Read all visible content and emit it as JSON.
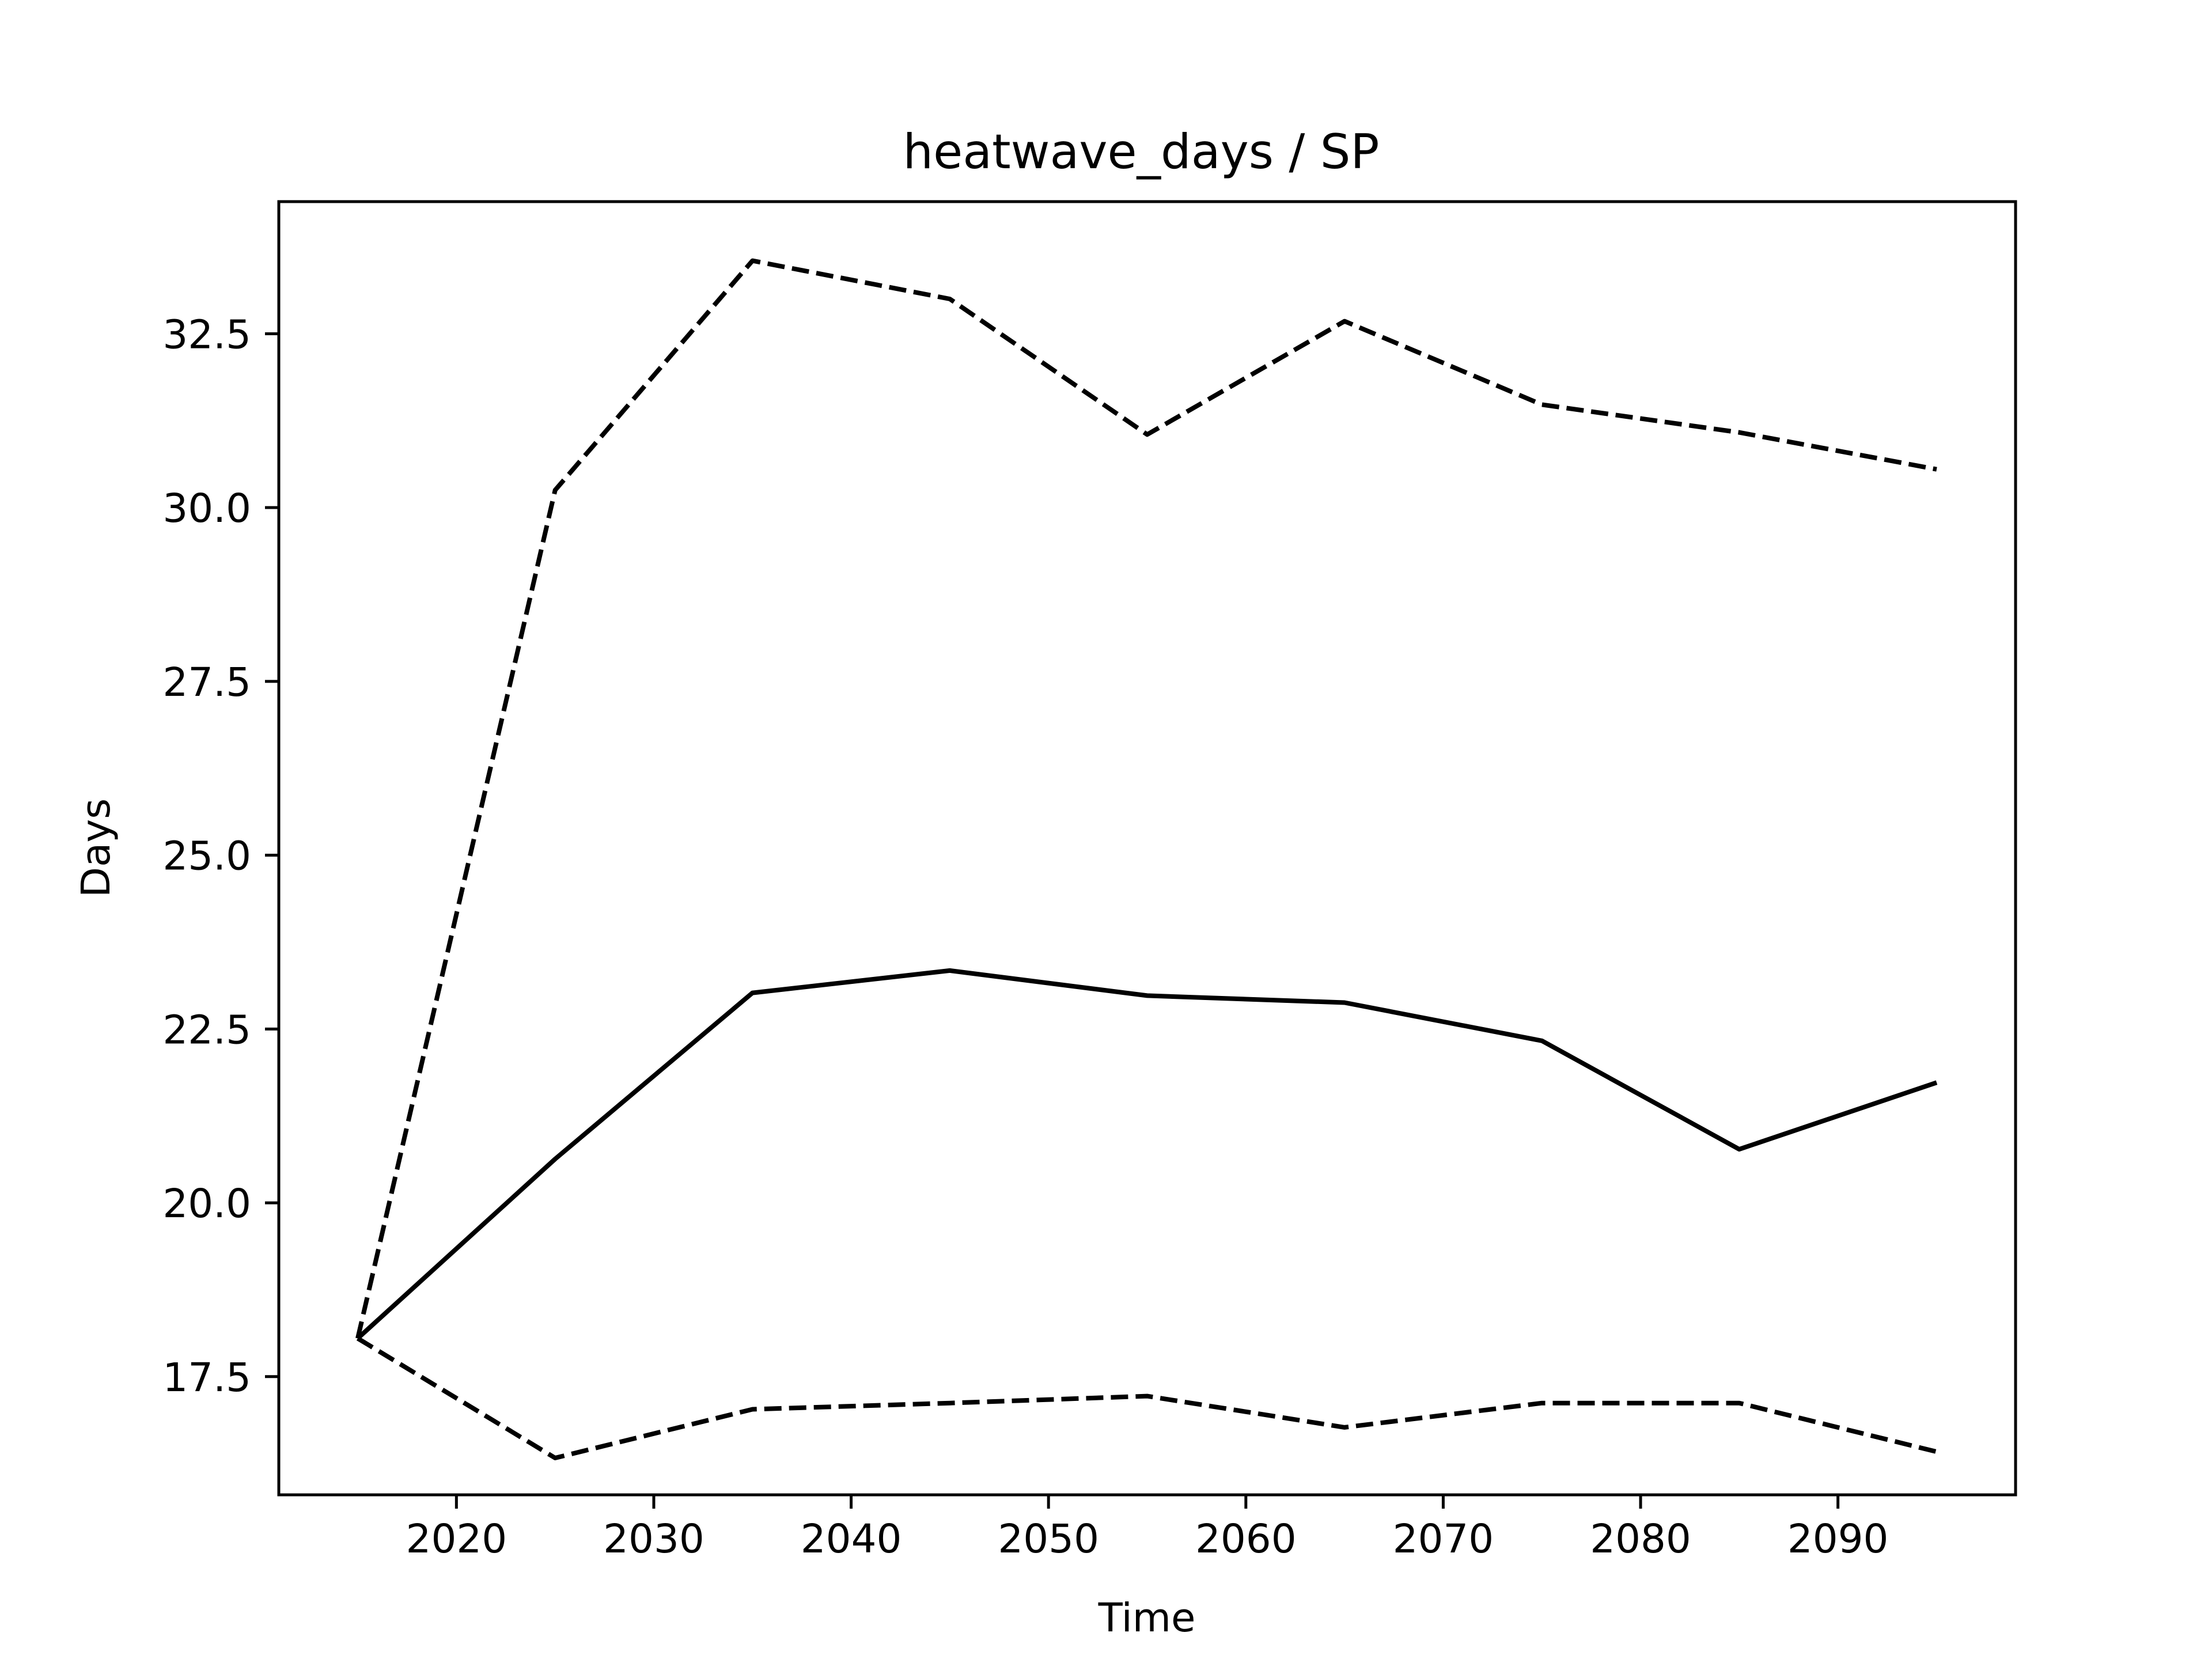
{
  "chart_data": {
    "type": "line",
    "title": "heatwave_days / SP",
    "xlabel": "Time",
    "ylabel": "Days",
    "xlim": [
      2011,
      2099
    ],
    "ylim": [
      15.8,
      34.4
    ],
    "xticks": [
      2020,
      2030,
      2040,
      2050,
      2060,
      2070,
      2080,
      2090
    ],
    "yticks": [
      17.5,
      20.0,
      22.5,
      25.0,
      27.5,
      30.0,
      32.5
    ],
    "ytick_labels": [
      "17.5",
      "20.0",
      "22.5",
      "25.0",
      "27.5",
      "30.0",
      "32.5"
    ],
    "grid": false,
    "legend": "none",
    "x": [
      2015,
      2025,
      2035,
      2045,
      2055,
      2065,
      2075,
      2085,
      2095
    ],
    "series": [
      {
        "style": "solid",
        "color": "#000000",
        "values": [
          18.05,
          20.63,
          23.02,
          23.34,
          22.98,
          22.88,
          22.33,
          20.77,
          21.73
        ]
      },
      {
        "style": "dashed",
        "color": "#000000",
        "values": [
          18.05,
          30.25,
          33.55,
          33.0,
          31.05,
          32.68,
          31.48,
          31.08,
          30.55
        ]
      },
      {
        "style": "dashed",
        "color": "#000000",
        "values": [
          18.05,
          16.33,
          17.03,
          17.12,
          17.22,
          16.77,
          17.12,
          17.12,
          16.42
        ]
      }
    ]
  }
}
